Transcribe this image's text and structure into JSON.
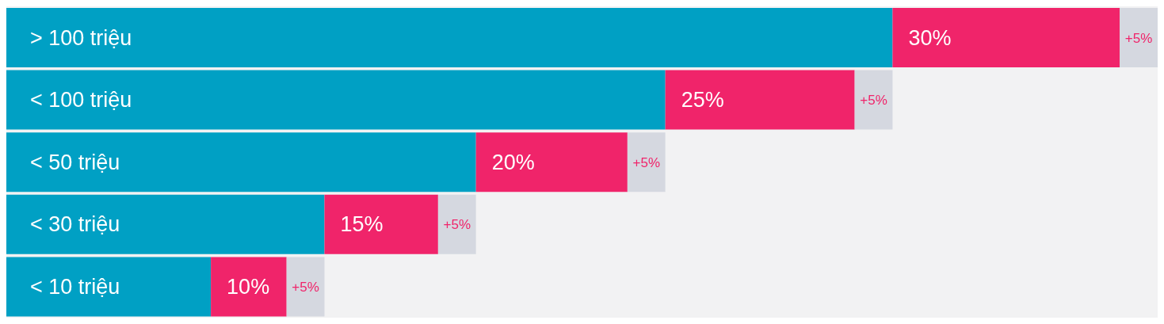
{
  "chart_data": {
    "type": "bar",
    "orientation": "horizontal",
    "stacked": true,
    "legend": false,
    "tick_labels": "y",
    "xlim": [
      0,
      152
    ],
    "categories": [
      "> 100 triệu",
      "< 100 triệu",
      "< 50 triệu",
      "< 30 triệu",
      "< 10 triệu"
    ],
    "series": [
      {
        "color": "#00a0c4",
        "values": [
          117,
          87,
          62,
          42,
          27
        ]
      },
      {
        "color": "#f0246a",
        "values": [
          30,
          25,
          20,
          15,
          10
        ],
        "value_labels": [
          "30%",
          "25%",
          "20%",
          "15%",
          "10%"
        ]
      },
      {
        "color": "#d5d8e0",
        "values": [
          5,
          5,
          5,
          5,
          5
        ],
        "value_labels": [
          "+5%",
          "+5%",
          "+5%",
          "+5%",
          "+5%"
        ]
      }
    ]
  }
}
